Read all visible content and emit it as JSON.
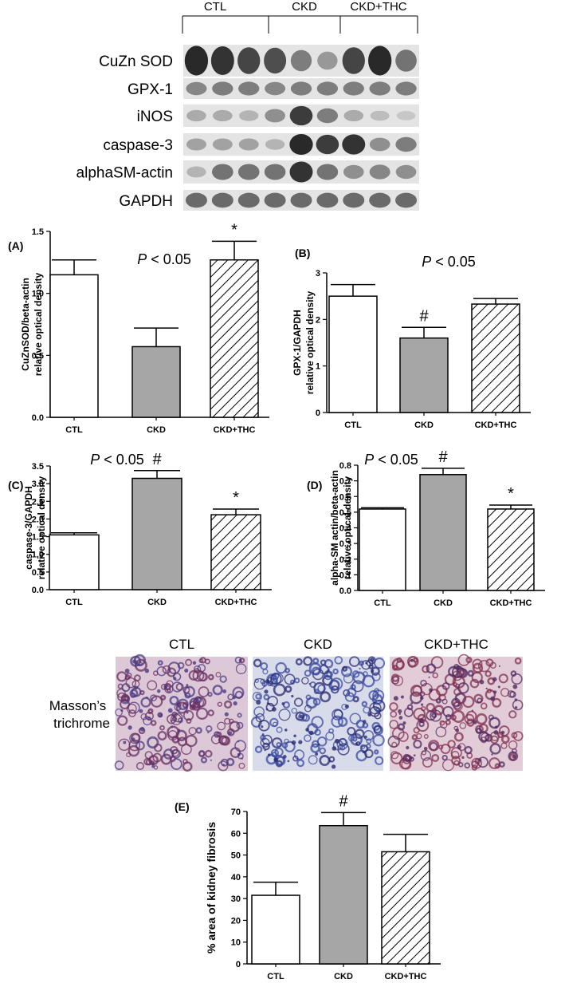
{
  "blot": {
    "group_labels": [
      "CTL",
      "CKD",
      "CKD+THC"
    ],
    "rows": [
      {
        "label": "CuZn SOD",
        "intensity": [
          0.95,
          0.9,
          0.8,
          0.75,
          0.5,
          0.35,
          0.8,
          0.95,
          0.55
        ]
      },
      {
        "label": "GPX-1",
        "intensity": [
          0.45,
          0.5,
          0.5,
          0.45,
          0.5,
          0.5,
          0.5,
          0.5,
          0.5
        ]
      },
      {
        "label": "iNOS",
        "intensity": [
          0.25,
          0.25,
          0.2,
          0.4,
          0.85,
          0.5,
          0.25,
          0.15,
          0.1
        ]
      },
      {
        "label": "caspase-3",
        "intensity": [
          0.3,
          0.3,
          0.3,
          0.2,
          0.95,
          0.85,
          0.9,
          0.4,
          0.5
        ]
      },
      {
        "label": "alphaSM-actin",
        "intensity": [
          0.2,
          0.55,
          0.55,
          0.55,
          0.9,
          0.55,
          0.4,
          0.45,
          0.4
        ]
      },
      {
        "label": "GAPDH",
        "intensity": [
          0.6,
          0.6,
          0.6,
          0.6,
          0.6,
          0.6,
          0.6,
          0.6,
          0.6
        ]
      }
    ]
  },
  "histology": {
    "stain_label": "Masson’s trichrome",
    "panels": [
      {
        "label": "CTL",
        "base": "#ddc8d8",
        "tone": "#6a3060",
        "alt": "#4a3a80"
      },
      {
        "label": "CKD",
        "base": "#d8dcea",
        "tone": "#3a4aa0",
        "alt": "#2a2a70"
      },
      {
        "label": "CKD+THC",
        "base": "#e2ccd8",
        "tone": "#803050",
        "alt": "#502a60"
      }
    ]
  },
  "colors": {
    "ctl": "#ffffff",
    "ckd": "#a6a6a6",
    "thc_hatch": "#000000"
  },
  "chart_data": [
    {
      "type": "bar",
      "panel_label": "(A)",
      "annotation": "P < 0.05",
      "annotation_p": "P",
      "annotation_rest": " < 0.05",
      "ylabel": [
        "CuZnSOD/beta-actin",
        "relative optical density"
      ],
      "categories": [
        "CTL",
        "CKD",
        "CKD+THC"
      ],
      "values": [
        1.15,
        0.57,
        1.27
      ],
      "errors": [
        0.12,
        0.15,
        0.15
      ],
      "markers": [
        "",
        "",
        "*"
      ],
      "ylim": [
        0,
        1.5
      ],
      "yticks": [
        "0.0",
        "0.5",
        "1.0",
        "1.5"
      ],
      "ytick_values": [
        0,
        0.5,
        1.0,
        1.5
      ]
    },
    {
      "type": "bar",
      "panel_label": "(B)",
      "annotation": "P < 0.05",
      "annotation_p": "P",
      "annotation_rest": " < 0.05",
      "ylabel": [
        "GPX-1/GAPDH",
        "relative optical density"
      ],
      "categories": [
        "CTL",
        "CKD",
        "CKD+THC"
      ],
      "values": [
        2.5,
        1.6,
        2.33
      ],
      "errors": [
        0.25,
        0.23,
        0.12
      ],
      "markers": [
        "",
        "#",
        ""
      ],
      "ylim": [
        0,
        3
      ],
      "yticks": [
        "0",
        "1",
        "2",
        "3"
      ],
      "ytick_values": [
        0,
        1,
        2,
        3
      ]
    },
    {
      "type": "bar",
      "panel_label": "(C)",
      "annotation": "P < 0.05",
      "annotation_p": "P",
      "annotation_rest": " < 0.05",
      "ylabel": [
        "caspase-3/GAPDH",
        "relative optical density"
      ],
      "categories": [
        "CTL",
        "CKD",
        "CKD+THC"
      ],
      "values": [
        1.55,
        3.15,
        2.12
      ],
      "errors": [
        0.06,
        0.22,
        0.16
      ],
      "markers": [
        "",
        "#",
        "*"
      ],
      "ylim": [
        0,
        3.5
      ],
      "yticks": [
        "0.0",
        "0.5",
        "1.0",
        "1.5",
        "2.0",
        "2.5",
        "3.0",
        "3.5"
      ],
      "ytick_values": [
        0,
        0.5,
        1.0,
        1.5,
        2.0,
        2.5,
        3.0,
        3.5
      ]
    },
    {
      "type": "bar",
      "panel_label": "(D)",
      "annotation": "P < 0.05",
      "annotation_p": "P",
      "annotation_rest": " < 0.05",
      "ylabel": [
        "alpha-SM actin/beta-actin",
        "relative optical density"
      ],
      "categories": [
        "CTL",
        "CKD",
        "CKD+THC"
      ],
      "values": [
        0.52,
        0.74,
        0.52
      ],
      "errors": [
        0.008,
        0.04,
        0.025
      ],
      "markers": [
        "",
        "#",
        "*"
      ],
      "ylim": [
        0,
        0.8
      ],
      "yticks": [
        "0.0",
        "0.1",
        "0.2",
        "0.3",
        "0.4",
        "0.5",
        "0.6",
        "0.7",
        "0.8"
      ],
      "ytick_values": [
        0,
        0.1,
        0.2,
        0.3,
        0.4,
        0.5,
        0.6,
        0.7,
        0.8
      ]
    },
    {
      "type": "bar",
      "panel_label": "(E)",
      "annotation": "",
      "ylabel": [
        "% area of kidney fibrosis"
      ],
      "categories": [
        "CTL",
        "CKD",
        "CKD+THC"
      ],
      "values": [
        31.5,
        63.5,
        51.5
      ],
      "errors": [
        6,
        6,
        8
      ],
      "markers": [
        "",
        "#",
        ""
      ],
      "ylim": [
        0,
        70
      ],
      "yticks": [
        "0",
        "10",
        "20",
        "30",
        "40",
        "50",
        "60",
        "70"
      ],
      "ytick_values": [
        0,
        10,
        20,
        30,
        40,
        50,
        60,
        70
      ]
    }
  ]
}
